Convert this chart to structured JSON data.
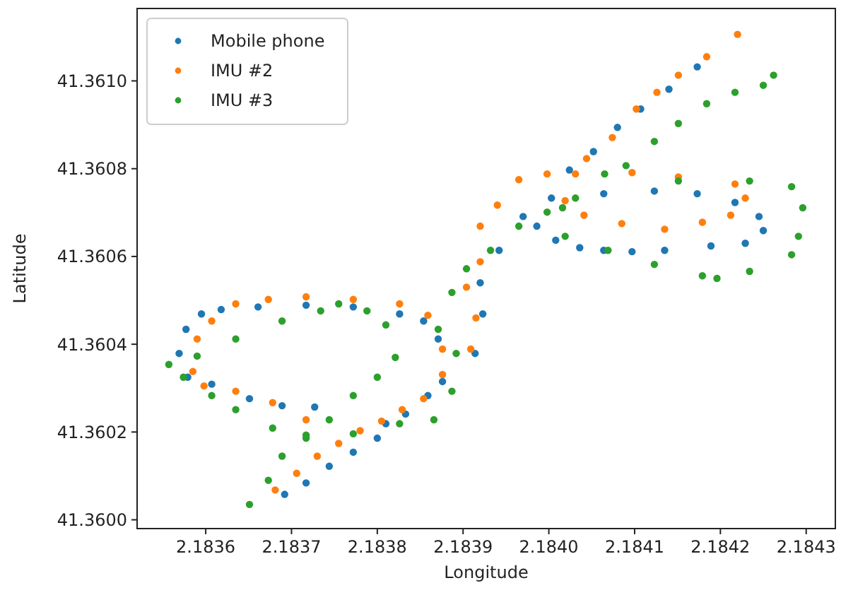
{
  "chart_data": {
    "type": "scatter",
    "xlabel": "Longitude",
    "ylabel": "Latitude",
    "xlim": [
      2.18352,
      2.184334
    ],
    "ylim": [
      41.35998,
      41.361165
    ],
    "xticks": [
      2.1836,
      2.1837,
      2.1838,
      2.1839,
      {
        "value": 2.184,
        "label": "2.1840"
      },
      2.1841,
      2.1842,
      2.1843
    ],
    "yticks": [
      {
        "value": 41.36,
        "label": "41.3600"
      },
      41.3602,
      41.3604,
      41.3606,
      41.3608,
      {
        "value": 41.361,
        "label": "41.3610"
      }
    ],
    "grid": false,
    "legend": "top left",
    "marker": "circle",
    "series": [
      {
        "name": "Mobile phone",
        "color": "#1f77b4",
        "x": [
          2.183692,
          2.183717,
          2.183744,
          2.183772,
          2.1838,
          2.18381,
          2.183833,
          2.183859,
          2.183876,
          2.183914,
          2.183923,
          2.18392,
          2.183942,
          2.18397,
          2.184003,
          2.184024,
          2.184052,
          2.18408,
          2.184107,
          2.18414,
          2.184173,
          2.183986,
          2.184008,
          2.184036,
          2.184064,
          2.184097,
          2.184135,
          2.184189,
          2.184229,
          2.18425,
          2.184245,
          2.184217,
          2.184173,
          2.184123,
          2.184064,
          2.183595,
          2.183618,
          2.183661,
          2.183717,
          2.183772,
          2.183826,
          2.183854,
          2.183871,
          2.183577,
          2.183569,
          2.183579,
          2.183607,
          2.183651,
          2.183689,
          2.183727
        ],
        "values": [
          41.360058,
          41.360084,
          41.360122,
          41.360154,
          41.360186,
          41.360219,
          41.360241,
          41.360283,
          41.360315,
          41.360379,
          41.360469,
          41.36054,
          41.360614,
          41.360691,
          41.360733,
          41.360797,
          41.360839,
          41.360894,
          41.360936,
          41.360981,
          41.361032,
          41.360669,
          41.360637,
          41.36062,
          41.360614,
          41.360611,
          41.360614,
          41.360624,
          41.36063,
          41.360659,
          41.360691,
          41.360723,
          41.360743,
          41.360749,
          41.360743,
          41.360469,
          41.360479,
          41.360485,
          41.360489,
          41.360485,
          41.360469,
          41.360453,
          41.360412,
          41.360434,
          41.360379,
          41.360325,
          41.360309,
          41.360276,
          41.36026,
          41.360257
        ]
      },
      {
        "name": "IMU #2",
        "color": "#ff7f0e",
        "x": [
          2.183681,
          2.183706,
          2.18373,
          2.183755,
          2.18378,
          2.183805,
          2.183829,
          2.183854,
          2.183876,
          2.183909,
          2.183915,
          2.183904,
          2.18392,
          2.18392,
          2.18394,
          2.183965,
          2.183998,
          2.184031,
          2.184044,
          2.184074,
          2.184102,
          2.184126,
          2.184151,
          2.184184,
          2.18422,
          2.184097,
          2.184151,
          2.184217,
          2.184229,
          2.184212,
          2.184179,
          2.184135,
          2.184085,
          2.184041,
          2.184019,
          2.18359,
          2.183607,
          2.183635,
          2.183673,
          2.183717,
          2.183772,
          2.183826,
          2.183859,
          2.183876,
          2.183585,
          2.183598,
          2.183635,
          2.183678,
          2.183717
        ],
        "values": [
          41.360068,
          41.360106,
          41.360145,
          41.360174,
          41.360203,
          41.360225,
          41.360251,
          41.360276,
          41.360331,
          41.360389,
          41.36046,
          41.36053,
          41.360588,
          41.360669,
          41.360717,
          41.360775,
          41.360788,
          41.360788,
          41.360823,
          41.360871,
          41.360936,
          41.360974,
          41.361013,
          41.361055,
          41.361106,
          41.360791,
          41.360781,
          41.360765,
          41.360733,
          41.360694,
          41.360678,
          41.360662,
          41.360675,
          41.360694,
          41.360727,
          41.360412,
          41.360453,
          41.360492,
          41.360502,
          41.360508,
          41.360502,
          41.360492,
          41.360466,
          41.360389,
          41.360338,
          41.360305,
          41.360293,
          41.360267,
          41.360228
        ]
      },
      {
        "name": "IMU #3",
        "color": "#2ca02c",
        "x": [
          2.183651,
          2.183673,
          2.183689,
          2.183717,
          2.183744,
          2.183772,
          2.1838,
          2.183821,
          2.18381,
          2.183788,
          2.183755,
          2.183734,
          2.183689,
          2.183635,
          2.18359,
          2.183557,
          2.183574,
          2.183607,
          2.183635,
          2.183678,
          2.183717,
          2.183772,
          2.183826,
          2.183866,
          2.183887,
          2.183892,
          2.183871,
          2.183887,
          2.183904,
          2.183932,
          2.183965,
          2.183998,
          2.184031,
          2.184065,
          2.18409,
          2.184123,
          2.184151,
          2.184184,
          2.184217,
          2.18425,
          2.184262,
          2.184151,
          2.184234,
          2.184283,
          2.184296,
          2.184291,
          2.184283,
          2.184234,
          2.184196,
          2.184179,
          2.184123,
          2.184069,
          2.184019,
          2.184016
        ],
        "values": [
          41.360035,
          41.36009,
          41.360145,
          41.360186,
          41.360228,
          41.360283,
          41.360325,
          41.36037,
          41.360444,
          41.360476,
          41.360492,
          41.360476,
          41.360453,
          41.360412,
          41.360373,
          41.360354,
          41.360325,
          41.360283,
          41.360251,
          41.360209,
          41.360193,
          41.360196,
          41.360219,
          41.360228,
          41.360293,
          41.360379,
          41.360434,
          41.360518,
          41.360572,
          41.360614,
          41.360669,
          41.360701,
          41.360733,
          41.360788,
          41.360807,
          41.360862,
          41.360903,
          41.360948,
          41.360974,
          41.36099,
          41.361013,
          41.360772,
          41.360772,
          41.360759,
          41.360711,
          41.360646,
          41.360604,
          41.360566,
          41.36055,
          41.360556,
          41.360582,
          41.360614,
          41.360646,
          41.360711
        ]
      }
    ]
  }
}
